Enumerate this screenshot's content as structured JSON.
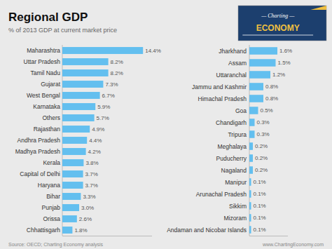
{
  "chart_data": [
    {
      "type": "bar",
      "orientation": "horizontal",
      "title": "Regional GDP",
      "subtitle": "% of 2013 GDP at current market price",
      "annotations": [
        "Source: OECD; Charting Economy analysis",
        "www.ChartingEconomy.com",
        "— Charting —",
        "ECONOMY"
      ],
      "categories": [
        "Maharashtra",
        "Uttar Pradesh",
        "Tamil Nadu",
        "Gujarat",
        "West Bengal",
        "Karnataka",
        "Others",
        "Rajasthan",
        "Andhra Pradesh",
        "Madhya Pradesh",
        "Kerala",
        "Capital of Delhi",
        "Haryana",
        "Bihar",
        "Punjab",
        "Orissa",
        "Chhattisgarh"
      ],
      "values": [
        14.4,
        8.2,
        8.2,
        7.3,
        6.7,
        5.9,
        5.7,
        4.9,
        4.4,
        4.2,
        3.8,
        3.7,
        3.7,
        3.3,
        3.0,
        2.6,
        1.8
      ],
      "value_labels": [
        "14.4%",
        "8.2%",
        "8.2%",
        "7.3%",
        "6.7%",
        "5.9%",
        "5.7%",
        "4.9%",
        "4.4%",
        "4.2%",
        "3.8%",
        "3.7%",
        "3.7%",
        "3.3%",
        "3.0%",
        "2.6%",
        "1.8%"
      ],
      "data_labels": true,
      "color": "#63BFEF",
      "xlim": [
        0,
        16
      ],
      "tick_labels": "y"
    },
    {
      "type": "bar",
      "orientation": "horizontal",
      "categories": [
        "Jharkhand",
        "Assam",
        "Uttaranchal",
        "Jammu and Kashmir",
        "Himachal Pradesh",
        "Goa",
        "Chandigarh",
        "Tripura",
        "Meghalaya",
        "Puducherry",
        "Nagaland",
        "Manipur",
        "Arunachal Pradesh",
        "Sikkim",
        "Mizoram",
        "Andaman and Nicobar Islands"
      ],
      "values": [
        1.6,
        1.5,
        1.2,
        0.8,
        0.8,
        0.5,
        0.3,
        0.3,
        0.2,
        0.2,
        0.2,
        0.1,
        0.1,
        0.1,
        0.1,
        0.1
      ],
      "value_labels": [
        "1.6%",
        "1.5%",
        "1.2%",
        "0.8%",
        "0.8%",
        "0.5%",
        "0.3%",
        "0.3%",
        "0.2%",
        "0.2%",
        "0.2%",
        "0.1%",
        "0.1%",
        "0.1%",
        "0.1%",
        "0.1%"
      ],
      "data_labels": true,
      "color": "#63BFEF",
      "xlim": [
        0,
        2.2
      ],
      "tick_labels": "y"
    }
  ]
}
